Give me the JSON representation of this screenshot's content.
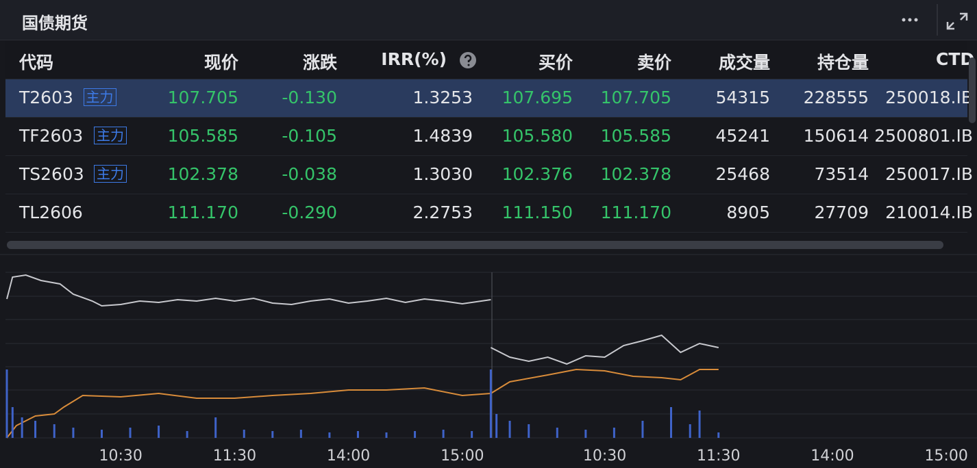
{
  "header": {
    "title": "国债期货"
  },
  "table": {
    "columns": [
      "代码",
      "现价",
      "涨跌",
      "IRR(%)",
      "买价",
      "卖价",
      "成交量",
      "持仓量",
      "CTD"
    ],
    "rows": [
      {
        "code": "T2603",
        "tag": "主力",
        "cells": [
          "107.705",
          "-0.130",
          "1.3253",
          "107.695",
          "107.705",
          "54315",
          "228555",
          "250018.IB"
        ]
      },
      {
        "code": "TF2603",
        "tag": "主力",
        "cells": [
          "105.585",
          "-0.105",
          "1.4839",
          "105.580",
          "105.585",
          "45241",
          "150614",
          "2500801.IB"
        ]
      },
      {
        "code": "TS2603",
        "tag": "主力",
        "cells": [
          "102.378",
          "-0.038",
          "1.3030",
          "102.376",
          "102.378",
          "25468",
          "73514",
          "250017.IB"
        ]
      },
      {
        "code": "TL2606",
        "cells": [
          "111.170",
          "-0.290",
          "2.2753",
          "111.150",
          "111.170",
          "8905",
          "27709",
          "210014.IB"
        ]
      }
    ]
  },
  "chart_data": {
    "type": "line",
    "xlim": [
      0,
      510
    ],
    "ylim": [
      0,
      100
    ],
    "xticks": [
      {
        "value": 60,
        "label": "10:30"
      },
      {
        "value": 120,
        "label": "11:30"
      },
      {
        "value": 180,
        "label": "14:00"
      },
      {
        "value": 240,
        "label": "15:00"
      },
      {
        "value": 315,
        "label": "10:30"
      },
      {
        "value": 375,
        "label": "11:30"
      },
      {
        "value": 435,
        "label": "14:00"
      },
      {
        "value": 495,
        "label": "15:00"
      }
    ],
    "series": [
      {
        "color": "#c8c9ce",
        "x": [
          0,
          3,
          10,
          18,
          28,
          35,
          45,
          50,
          60,
          70,
          80,
          90,
          100,
          110,
          120,
          130,
          140,
          150,
          160,
          170,
          180,
          190,
          200,
          210,
          220,
          230,
          240,
          255,
          null,
          255,
          265,
          275,
          285,
          295,
          305,
          315,
          325,
          335,
          345,
          355,
          365,
          375
        ],
        "values": [
          81.2,
          94,
          95.2,
          92,
          90,
          84,
          80,
          77.2,
          78,
          80,
          79.2,
          80.8,
          80,
          81.6,
          80,
          81.6,
          78.8,
          78,
          80,
          81.2,
          78.8,
          80,
          81.6,
          79.2,
          81.2,
          80,
          78.4,
          80.8,
          null,
          52.8,
          47.2,
          44.8,
          47.2,
          43.2,
          48,
          47.2,
          54,
          56.8,
          60,
          50,
          55.2,
          52.8
        ]
      },
      {
        "color": "#d98c3a",
        "x": [
          0,
          5,
          15,
          25,
          30,
          40,
          60,
          80,
          100,
          120,
          140,
          160,
          180,
          200,
          220,
          240,
          255,
          265,
          285,
          300,
          315,
          330,
          345,
          355,
          365,
          375
        ],
        "values": [
          0,
          7.2,
          12.8,
          14,
          18,
          24.8,
          24,
          26,
          23.2,
          23.2,
          24.8,
          26,
          28,
          28,
          29.2,
          24.8,
          26,
          32.8,
          36.8,
          40,
          39.2,
          36,
          35.2,
          34,
          40,
          40
        ]
      },
      {
        "type": "bar",
        "color": "#3f63c9",
        "x": [
          0,
          3,
          8,
          15,
          25,
          35,
          50,
          65,
          80,
          95,
          110,
          125,
          140,
          155,
          170,
          185,
          200,
          215,
          230,
          245,
          255,
          258,
          265,
          275,
          290,
          305,
          320,
          335,
          350,
          360,
          365,
          375
        ],
        "values": [
          40,
          18,
          12,
          10,
          8,
          6,
          4.8,
          6,
          7.2,
          4,
          12,
          4.8,
          4,
          4.8,
          3.2,
          4,
          3.2,
          4,
          4.8,
          4,
          40,
          14,
          10,
          8,
          6,
          4.8,
          6,
          10,
          18,
          8,
          16,
          3.2
        ]
      }
    ]
  }
}
